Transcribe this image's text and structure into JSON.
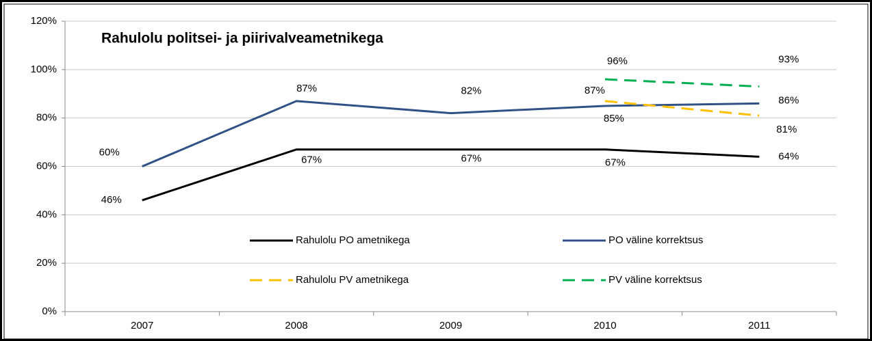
{
  "chart_data": {
    "type": "line",
    "title": "Rahulolu politsei- ja piirivalveametnikega",
    "categories": [
      "2007",
      "2008",
      "2009",
      "2010",
      "2011"
    ],
    "ylim": [
      0,
      120
    ],
    "yticks": [
      {
        "value": 0,
        "label": "0%"
      },
      {
        "value": 20,
        "label": "20%"
      },
      {
        "value": 40,
        "label": "40%"
      },
      {
        "value": 60,
        "label": "60%"
      },
      {
        "value": 80,
        "label": "80%"
      },
      {
        "value": 100,
        "label": "100%"
      },
      {
        "value": 120,
        "label": "120%"
      }
    ],
    "grid": true,
    "series": [
      {
        "name": "Rahulolu PO ametnikega",
        "color": "#000000",
        "dash": false,
        "values": [
          46,
          67,
          67,
          67,
          64
        ],
        "value_labels": [
          "46%",
          "67%",
          "67%",
          "67%",
          "64%"
        ]
      },
      {
        "name": "PO väline korrektsus",
        "color": "#2f5185",
        "dash": false,
        "values": [
          60,
          87,
          82,
          85,
          86
        ],
        "value_labels": [
          "60%",
          "87%",
          "82%",
          "85%",
          "86%"
        ]
      },
      {
        "name": "Rahulolu PV ametnikega",
        "color": "#ffc000",
        "dash": true,
        "values": [
          null,
          null,
          null,
          87,
          81
        ],
        "value_labels": [
          null,
          null,
          null,
          "87%",
          "81%"
        ]
      },
      {
        "name": "PV väline korrektsus",
        "color": "#00b050",
        "dash": true,
        "values": [
          null,
          null,
          null,
          96,
          93
        ],
        "value_labels": [
          null,
          null,
          null,
          "96%",
          "93%"
        ]
      }
    ]
  }
}
